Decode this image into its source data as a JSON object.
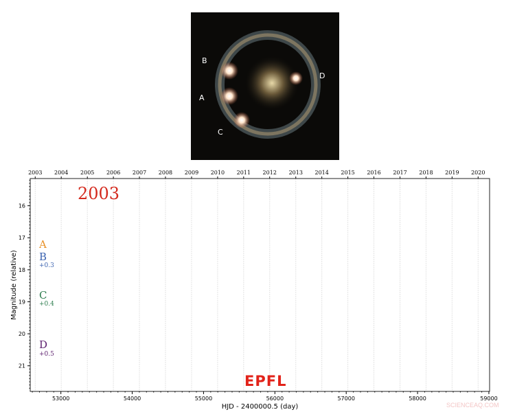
{
  "image": {
    "name": "einstein-ring-lensed-quasar",
    "labels": [
      "A",
      "B",
      "C",
      "D"
    ]
  },
  "chart_data": {
    "type": "line",
    "title": "",
    "current_year_label": "2003",
    "xlabel": "HJD - 2400000.5 (day)",
    "ylabel": "Magnitude (relative)",
    "xlim": [
      52570,
      59010
    ],
    "ylim": [
      21.8,
      15.15
    ],
    "y_inverted": true,
    "xticks": [
      53000,
      54000,
      55000,
      56000,
      57000,
      58000,
      59000
    ],
    "yticks": [
      16,
      17,
      18,
      19,
      20,
      21
    ],
    "top_axis_years": [
      "2003",
      "2004",
      "2005",
      "2006",
      "2007",
      "2008",
      "2009",
      "2010",
      "2011",
      "2012",
      "2013",
      "2014",
      "2015",
      "2016",
      "2017",
      "2018",
      "2019",
      "2020"
    ],
    "top_axis_year_mjd": [
      52640,
      53005,
      53371,
      53736,
      54101,
      54466,
      54832,
      55197,
      55562,
      55927,
      56293,
      56658,
      57023,
      57388,
      57754,
      58119,
      58484,
      58849
    ],
    "grid": "vertical-at-years",
    "series": [
      {
        "name": "A",
        "offset": "",
        "color": "#e8922a",
        "values": []
      },
      {
        "name": "B",
        "offset": "+0.3",
        "color": "#3a62b0",
        "values": []
      },
      {
        "name": "C",
        "offset": "+0.4",
        "color": "#2e7d4f",
        "values": []
      },
      {
        "name": "D",
        "offset": "+0.5",
        "color": "#5c1f6e",
        "values": []
      }
    ]
  },
  "logo": "EPFL",
  "watermark": "SCIENCEAQ.COM",
  "colors": {
    "year_label": "#d42a1e",
    "logo": "#e2231a"
  }
}
